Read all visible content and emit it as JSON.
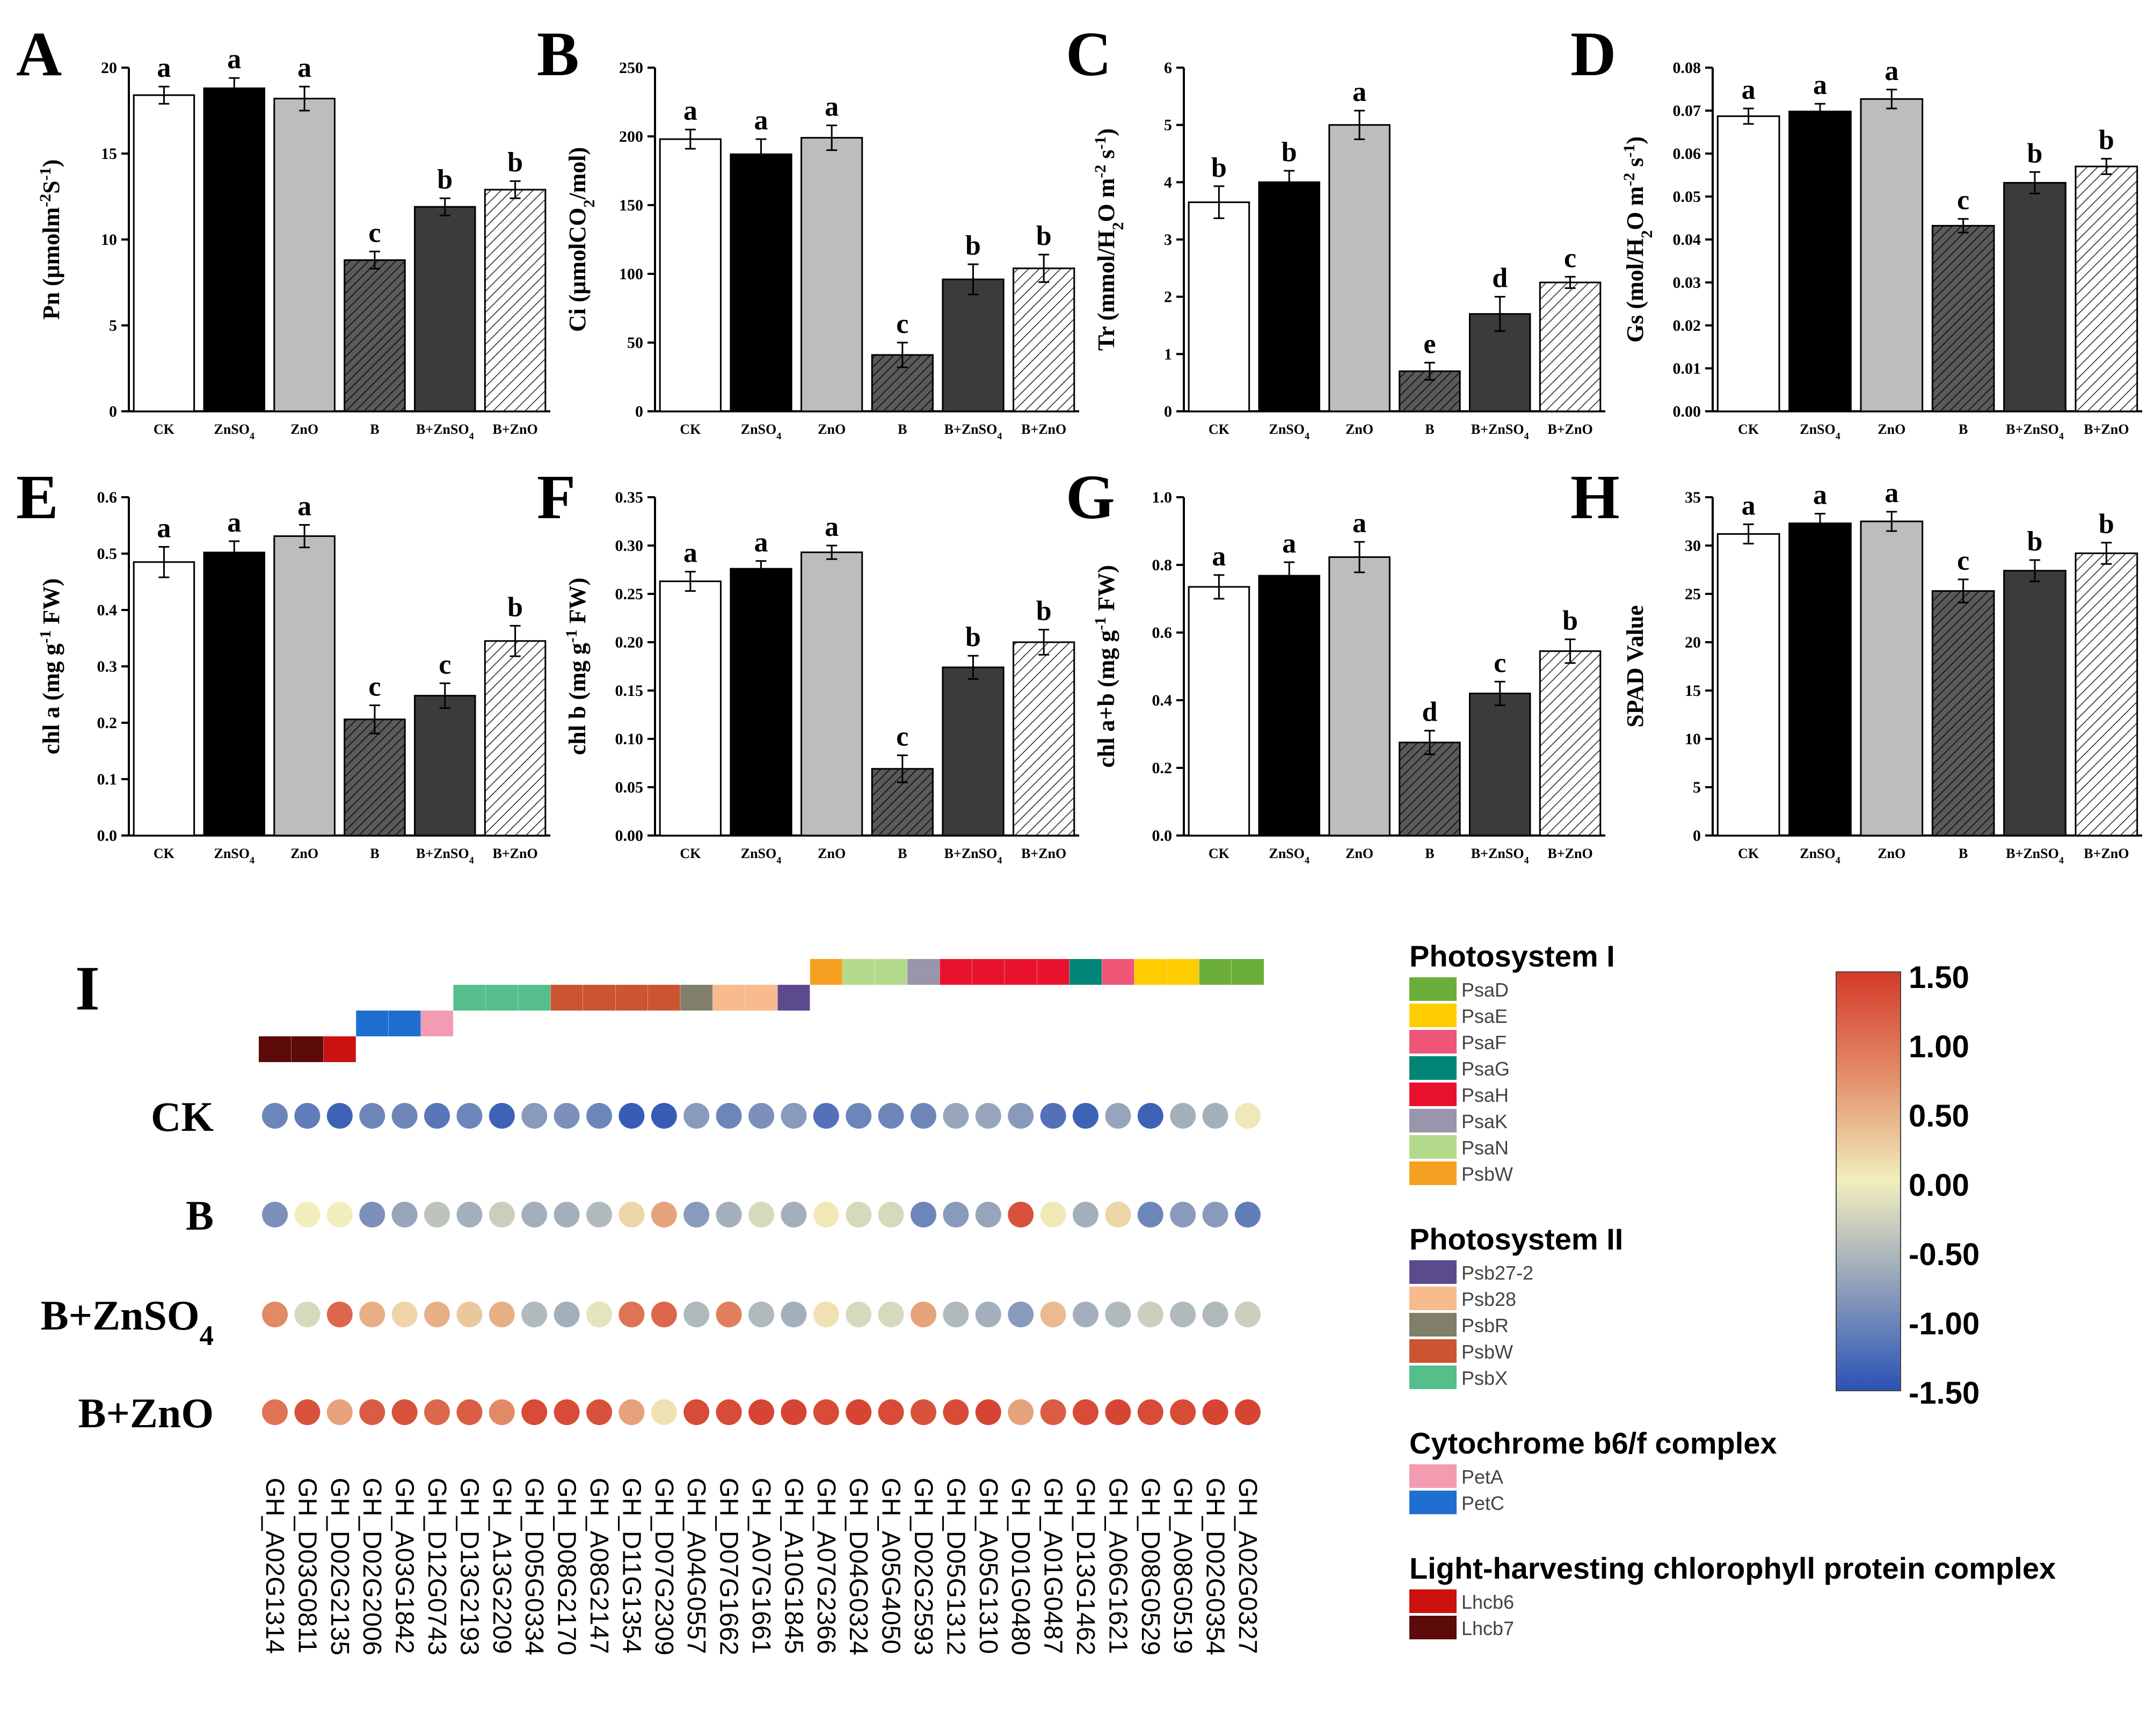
{
  "chart_data": [
    {
      "panel": "A",
      "type": "bar",
      "ylabel": "Pn (μmolm⁻²S⁻¹)",
      "ylim": [
        0,
        20
      ],
      "yticks": [
        0,
        5,
        10,
        15,
        20
      ],
      "tick_labels": [
        "0",
        "5",
        "10",
        "15",
        "20"
      ],
      "categories": [
        "CK",
        "ZnSO₄",
        "ZnO",
        "B",
        "B+ZnSO₄",
        "B+ZnO"
      ],
      "values": [
        18.4,
        18.8,
        18.2,
        8.8,
        11.9,
        12.9
      ],
      "errors": [
        0.5,
        0.6,
        0.7,
        0.5,
        0.5,
        0.5
      ],
      "letters": [
        "a",
        "a",
        "a",
        "c",
        "b",
        "b"
      ]
    },
    {
      "panel": "B",
      "type": "bar",
      "ylabel": "Ci (μmolCO₂/mol)",
      "ylim": [
        0,
        250
      ],
      "yticks": [
        0,
        50,
        100,
        150,
        200,
        250
      ],
      "tick_labels": [
        "0",
        "50",
        "100",
        "150",
        "200",
        "250"
      ],
      "categories": [
        "CK",
        "ZnSO₄",
        "ZnO",
        "B",
        "B+ZnSO₄",
        "B+ZnO"
      ],
      "values": [
        198,
        187,
        199,
        41,
        96,
        104
      ],
      "errors": [
        7,
        11,
        9,
        9,
        11,
        10
      ],
      "letters": [
        "a",
        "a",
        "a",
        "c",
        "b",
        "b"
      ]
    },
    {
      "panel": "C",
      "type": "bar",
      "ylabel": "Tr (mmol/H₂O m⁻² s⁻¹)",
      "ylim": [
        0,
        6
      ],
      "yticks": [
        0,
        1,
        2,
        3,
        4,
        5,
        6
      ],
      "tick_labels": [
        "0",
        "1",
        "2",
        "3",
        "4",
        "5",
        "6"
      ],
      "categories": [
        "CK",
        "ZnSO₄",
        "ZnO",
        "B",
        "B+ZnSO₄",
        "B+ZnO"
      ],
      "values": [
        3.65,
        4.0,
        5.0,
        0.7,
        1.7,
        2.25
      ],
      "errors": [
        0.28,
        0.2,
        0.25,
        0.15,
        0.3,
        0.1
      ],
      "letters": [
        "b",
        "b",
        "a",
        "e",
        "d",
        "c"
      ]
    },
    {
      "panel": "D",
      "type": "bar",
      "ylabel": "Gs (mol/H₂O m⁻² s⁻¹)",
      "ylim": [
        0,
        0.08
      ],
      "yticks": [
        0,
        0.01,
        0.02,
        0.03,
        0.04,
        0.05,
        0.06,
        0.07,
        0.08
      ],
      "tick_labels": [
        "0.00",
        "0.01",
        "0.02",
        "0.03",
        "0.04",
        "0.05",
        "0.06",
        "0.07",
        "0.08"
      ],
      "categories": [
        "CK",
        "ZnSO₄",
        "ZnO",
        "B",
        "B+ZnSO₄",
        "B+ZnO"
      ],
      "values": [
        0.0687,
        0.0698,
        0.0727,
        0.0432,
        0.0532,
        0.057
      ],
      "errors": [
        0.0018,
        0.0018,
        0.0022,
        0.0016,
        0.0025,
        0.0018
      ],
      "letters": [
        "a",
        "a",
        "a",
        "c",
        "b",
        "b"
      ]
    },
    {
      "panel": "E",
      "type": "bar",
      "ylabel": "chl a (mg g⁻¹ FW)",
      "ylim": [
        0,
        0.6
      ],
      "yticks": [
        0,
        0.1,
        0.2,
        0.3,
        0.4,
        0.5,
        0.6
      ],
      "tick_labels": [
        "0.0",
        "0.1",
        "0.2",
        "0.3",
        "0.4",
        "0.5",
        "0.6"
      ],
      "categories": [
        "CK",
        "ZnSO₄",
        "ZnO",
        "B",
        "B+ZnSO₄",
        "B+ZnO"
      ],
      "values": [
        0.485,
        0.502,
        0.531,
        0.206,
        0.248,
        0.345
      ],
      "errors": [
        0.027,
        0.02,
        0.02,
        0.025,
        0.022,
        0.027
      ],
      "letters": [
        "a",
        "a",
        "a",
        "c",
        "c",
        "b"
      ]
    },
    {
      "panel": "F",
      "type": "bar",
      "ylabel": "chl b (mg g⁻¹ FW)",
      "ylim": [
        0,
        0.35
      ],
      "yticks": [
        0,
        0.05,
        0.1,
        0.15,
        0.2,
        0.25,
        0.3,
        0.35
      ],
      "tick_labels": [
        "0.00",
        "0.05",
        "0.10",
        "0.15",
        "0.20",
        "0.25",
        "0.30",
        "0.35"
      ],
      "categories": [
        "CK",
        "ZnSO₄",
        "ZnO",
        "B",
        "B+ZnSO₄",
        "B+ZnO"
      ],
      "values": [
        0.263,
        0.276,
        0.293,
        0.069,
        0.174,
        0.2
      ],
      "errors": [
        0.01,
        0.008,
        0.007,
        0.014,
        0.012,
        0.013
      ],
      "letters": [
        "a",
        "a",
        "a",
        "c",
        "b",
        "b"
      ]
    },
    {
      "panel": "G",
      "type": "bar",
      "ylabel": "chl a+b (mg g⁻¹ FW)",
      "ylim": [
        0,
        1.0
      ],
      "yticks": [
        0,
        0.2,
        0.4,
        0.6,
        0.8,
        1.0
      ],
      "tick_labels": [
        "0.0",
        "0.2",
        "0.4",
        "0.6",
        "0.8",
        "1.0"
      ],
      "categories": [
        "CK",
        "ZnSO₄",
        "ZnO",
        "B",
        "B+ZnSO₄",
        "B+ZnO"
      ],
      "values": [
        0.735,
        0.768,
        0.823,
        0.275,
        0.42,
        0.545
      ],
      "errors": [
        0.035,
        0.04,
        0.045,
        0.035,
        0.035,
        0.035
      ],
      "letters": [
        "a",
        "a",
        "a",
        "d",
        "c",
        "b"
      ]
    },
    {
      "panel": "H",
      "type": "bar",
      "ylabel": "SPAD Value",
      "ylim": [
        0,
        35
      ],
      "yticks": [
        0,
        5,
        10,
        15,
        20,
        25,
        30,
        35
      ],
      "tick_labels": [
        "0",
        "5",
        "10",
        "15",
        "20",
        "25",
        "30",
        "35"
      ],
      "categories": [
        "CK",
        "ZnSO₄",
        "ZnO",
        "B",
        "B+ZnSO₄",
        "B+ZnO"
      ],
      "values": [
        31.2,
        32.3,
        32.5,
        25.3,
        27.4,
        29.2
      ],
      "errors": [
        1.0,
        1.0,
        1.0,
        1.2,
        1.1,
        1.1
      ],
      "letters": [
        "a",
        "a",
        "a",
        "c",
        "b",
        "b"
      ]
    },
    {
      "panel": "I",
      "type": "heatmap",
      "rows": [
        "CK",
        "B",
        "B+ZnSO₄",
        "B+ZnO"
      ],
      "genes": [
        "GH_A02G1314",
        "GH_D03G0811",
        "GH_D02G2135",
        "GH_D02G2006",
        "GH_A03G1842",
        "GH_D12G0743",
        "GH_D13G2193",
        "GH_A13G2209",
        "GH_D05G0334",
        "GH_D08G2170",
        "GH_A08G2147",
        "GH_D11G1354",
        "GH_D07G2309",
        "GH_A04G0557",
        "GH_D07G1662",
        "GH_A07G1661",
        "GH_A10G1845",
        "GH_A07G2366",
        "GH_D04G0324",
        "GH_A05G4050",
        "GH_D02G2593",
        "GH_D05G1312",
        "GH_A05G1310",
        "GH_D01G0480",
        "GH_A01G0487",
        "GH_D13G1462",
        "GH_A06G1621",
        "GH_D08G0529",
        "GH_A08G0519",
        "GH_D02G0354",
        "GH_A02G0327"
      ],
      "values": [
        [
          -1.0,
          -1.1,
          -1.35,
          -1.0,
          -1.0,
          -1.15,
          -1.0,
          -1.35,
          -0.8,
          -0.9,
          -1.0,
          -1.4,
          -1.4,
          -0.8,
          -1.0,
          -0.9,
          -0.8,
          -1.2,
          -1.0,
          -1.0,
          -1.0,
          -0.7,
          -0.7,
          -0.8,
          -1.2,
          -1.35,
          -0.7,
          -1.35,
          -0.6,
          -0.6,
          0.05
        ],
        [
          -0.9,
          0.0,
          0.0,
          -0.9,
          -0.7,
          -0.4,
          -0.6,
          -0.3,
          -0.6,
          -0.6,
          -0.5,
          0.2,
          0.6,
          -0.8,
          -0.6,
          -0.2,
          -0.6,
          0.05,
          -0.2,
          -0.2,
          -1.0,
          -0.8,
          -0.7,
          1.3,
          0.05,
          -0.6,
          0.2,
          -1.0,
          -0.8,
          -0.8,
          -1.1
        ],
        [
          0.8,
          -0.2,
          1.1,
          0.5,
          0.2,
          0.5,
          0.3,
          0.5,
          -0.5,
          -0.6,
          -0.1,
          1.0,
          1.1,
          -0.5,
          0.9,
          -0.5,
          -0.6,
          0.1,
          -0.2,
          -0.2,
          0.6,
          -0.5,
          -0.6,
          -0.8,
          0.4,
          -0.6,
          -0.5,
          -0.3,
          -0.5,
          -0.5,
          -0.3
        ],
        [
          1.0,
          1.3,
          0.6,
          1.2,
          1.3,
          1.1,
          1.2,
          0.8,
          1.35,
          1.35,
          1.3,
          0.6,
          0.1,
          1.35,
          1.35,
          1.4,
          1.4,
          1.35,
          1.4,
          1.35,
          1.3,
          1.35,
          1.4,
          0.6,
          1.2,
          1.35,
          1.4,
          1.35,
          1.35,
          1.4,
          1.4
        ]
      ],
      "annotation": {
        "categories": [
          "Lhcb7",
          "Lhcb7",
          "Lhcb6",
          "PetC",
          "PetC",
          "PetA",
          "PsbX",
          "PsbX",
          "PsbX",
          "PsbW",
          "PsbW",
          "PsbW",
          "PsbW",
          "PsbR",
          "Psb28",
          "Psb28",
          "Psb27-2",
          "PsbW",
          "PsaN",
          "PsaN",
          "PsaK",
          "PsaH",
          "PsaH",
          "PsaH",
          "PsaH",
          "PsaG",
          "PsaF",
          "PsaE",
          "PsaE",
          "PsaD",
          "PsaD"
        ],
        "tiers": [
          0,
          0,
          0,
          1,
          1,
          1,
          2,
          2,
          2,
          2,
          2,
          2,
          2,
          2,
          2,
          2,
          2,
          3,
          3,
          3,
          3,
          3,
          3,
          3,
          3,
          3,
          3,
          3,
          3,
          3,
          3
        ]
      },
      "colorbar": {
        "min": -1.5,
        "max": 1.5,
        "ticks": [
          "1.50",
          "1.00",
          "0.50",
          "0.00",
          "-0.50",
          "-1.00",
          "-1.50"
        ]
      },
      "legend": [
        {
          "group": "Photosystem I",
          "items": [
            {
              "label": "PsaD",
              "color": "#6BAE3A"
            },
            {
              "label": "PsaE",
              "color": "#FFCC00"
            },
            {
              "label": "PsaF",
              "color": "#EE5577"
            },
            {
              "label": "PsaG",
              "color": "#008577"
            },
            {
              "label": "PsaH",
              "color": "#E8122E"
            },
            {
              "label": "PsaK",
              "color": "#9A94AC"
            },
            {
              "label": "PsaN",
              "color": "#B3D98A"
            },
            {
              "label": "PsbW",
              "color": "#F5A021"
            }
          ]
        },
        {
          "group": "Photosystem II",
          "items": [
            {
              "label": "Psb27-2",
              "color": "#5C4A8E"
            },
            {
              "label": "Psb28",
              "color": "#F7BB8E"
            },
            {
              "label": "PsbR",
              "color": "#7F7F6A"
            },
            {
              "label": "PsbW",
              "color": "#CC5431"
            },
            {
              "label": "PsbX",
              "color": "#55BE8B"
            }
          ]
        },
        {
          "group": "Cytochrome b6/f complex",
          "items": [
            {
              "label": "PetA",
              "color": "#F39BB1"
            },
            {
              "label": "PetC",
              "color": "#1F6FD0"
            }
          ]
        },
        {
          "group": "Light-harvesting chlorophyll protein complex",
          "items": [
            {
              "label": "Lhcb6",
              "color": "#CC1111"
            },
            {
              "label": "Lhcb7",
              "color": "#5C0A0A"
            }
          ]
        }
      ]
    }
  ],
  "colors": {
    "CK": "#ffffff",
    "ZnSO4": "#000000",
    "ZnO": "#bdbdbd",
    "B": "#5a5a5a",
    "B_ZnSO4": "#3b3b3b",
    "B_ZnO": "#ffffff",
    "scale_low": "#2A52B5",
    "scale_mid": "#F1EEBD",
    "scale_high": "#D43A2A"
  }
}
